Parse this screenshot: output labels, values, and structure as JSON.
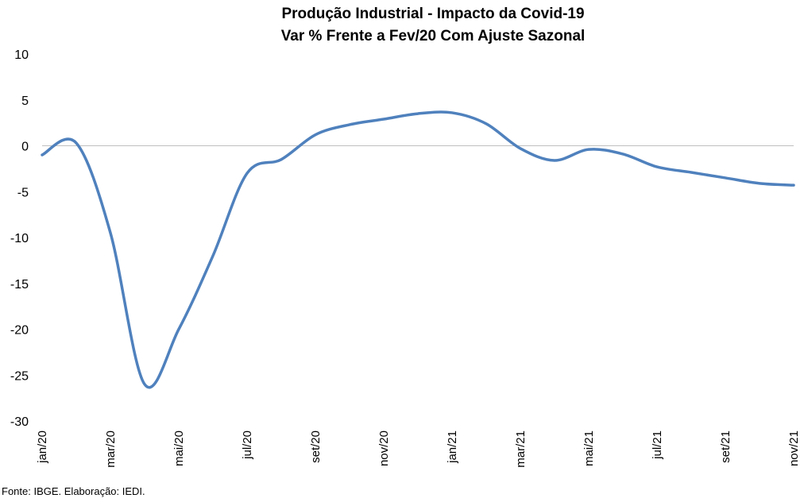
{
  "chart_data": {
    "type": "line",
    "title": "Produção Industrial - Impacto da Covid-19",
    "subtitle": "Var % Frente a Fev/20 Com Ajuste Sazonal",
    "source": "Fonte: IBGE. Elaboração: IEDI.",
    "ylim": [
      -30,
      10
    ],
    "yticks": [
      10,
      5,
      0,
      -5,
      -10,
      -15,
      -20,
      -25,
      -30
    ],
    "xtick_labels": [
      "jan/20",
      "mar/20",
      "mai/20",
      "jul/20",
      "set/20",
      "nov/20",
      "jan/21",
      "mar/21",
      "mai/21",
      "jul/21",
      "set/21",
      "nov/21"
    ],
    "x": [
      "jan/20",
      "fev/20",
      "mar/20",
      "abr/20",
      "mai/20",
      "jun/20",
      "jul/20",
      "ago/20",
      "set/20",
      "out/20",
      "nov/20",
      "dez/20",
      "jan/21",
      "fev/21",
      "mar/21",
      "abr/21",
      "mai/21",
      "jun/21",
      "jul/21",
      "ago/21",
      "set/21",
      "out/21",
      "nov/21"
    ],
    "series": [
      {
        "color": "#4f81bd",
        "values": [
          -1.0,
          0.3,
          -9.5,
          -26.0,
          -20.0,
          -12.0,
          -3.0,
          -1.5,
          1.2,
          2.3,
          2.9,
          3.5,
          3.6,
          2.4,
          -0.3,
          -1.6,
          -0.4,
          -0.9,
          -2.3,
          -2.9,
          -3.5,
          -4.1,
          -4.3
        ]
      }
    ],
    "zero_line": true,
    "grid": false,
    "legend": "none"
  }
}
